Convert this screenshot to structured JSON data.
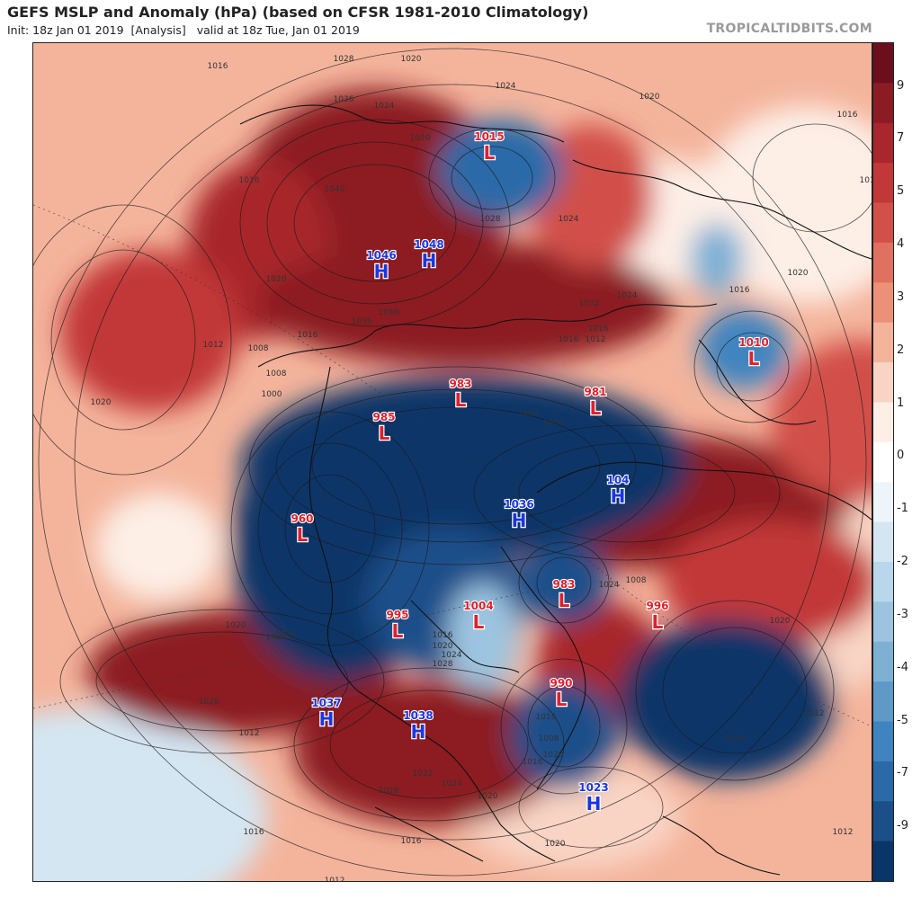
{
  "header": {
    "title": "GEFS MSLP and Anomaly (hPa) (based on CFSR 1981-2010 Climatology)",
    "init": "Init: 18z Jan 01 2019",
    "analysis": "[Analysis]",
    "valid": "valid at 18z Tue, Jan 01 2019",
    "brand": "TROPICALTIDBITS.COM"
  },
  "colors": {
    "strong_positive": "#8c1c24",
    "positive": "#d2504a",
    "weak_positive": "#f4b49c",
    "neutral": "#ffffff",
    "weak_negative": "#b9d7ea",
    "negative": "#3f84c0",
    "strong_negative": "#0a3568",
    "high_label": "#1b36e0",
    "low_label": "#e0202c"
  },
  "colorbar": {
    "ticks": [
      "9",
      "7",
      "5",
      "4",
      "3",
      "2",
      "1",
      "0",
      "-1",
      "-2",
      "-3",
      "-4",
      "-5",
      "-7",
      "-9"
    ],
    "steps": [
      "#6d0e1c",
      "#8c1c24",
      "#a8262c",
      "#c23838",
      "#d2504a",
      "#e07060",
      "#ec9078",
      "#f4b49c",
      "#f9d4c4",
      "#fdeee6",
      "#ffffff",
      "#eef5fa",
      "#d4e6f2",
      "#b9d7ea",
      "#9cc4e0",
      "#7eb0d4",
      "#5e99c8",
      "#3f84c0",
      "#2a6aa8",
      "#1a4f8a",
      "#0a3568"
    ]
  },
  "pressure_centers": [
    {
      "type": "L",
      "value": "1015"
    },
    {
      "type": "H",
      "value": "1046"
    },
    {
      "type": "H",
      "value": "1048"
    },
    {
      "type": "L",
      "value": "983"
    },
    {
      "type": "L",
      "value": "981"
    },
    {
      "type": "L",
      "value": "985"
    },
    {
      "type": "L",
      "value": "1010"
    },
    {
      "type": "H",
      "value": "104"
    },
    {
      "type": "H",
      "value": "1036"
    },
    {
      "type": "L",
      "value": "960"
    },
    {
      "type": "L",
      "value": "983"
    },
    {
      "type": "L",
      "value": "995"
    },
    {
      "type": "L",
      "value": "1004"
    },
    {
      "type": "L",
      "value": "996"
    },
    {
      "type": "L",
      "value": "990"
    },
    {
      "type": "H",
      "value": "1037"
    },
    {
      "type": "H",
      "value": "1038"
    },
    {
      "type": "H",
      "value": "1023"
    }
  ],
  "isobar_labels": [
    "1016",
    "1028",
    "1020",
    "1024",
    "1020",
    "1020",
    "1016",
    "1036",
    "1024",
    "1040",
    "1016",
    "1012",
    "1024",
    "1028",
    "1032",
    "1024",
    "1016",
    "1020",
    "1012",
    "1008",
    "1020",
    "1016",
    "1036",
    "1040",
    "1020",
    "1016",
    "1012",
    "1016",
    "1008",
    "1000",
    "1004",
    "1004",
    "1024",
    "1028",
    "1016",
    "1020",
    "1024",
    "1032",
    "1028",
    "1024",
    "1016",
    "1020",
    "1008",
    "1024",
    "1020",
    "1012",
    "1016",
    "1028",
    "1024",
    "1016",
    "1012",
    "1020",
    "1020",
    "1016",
    "1008",
    "1016",
    "1012",
    "1020",
    "1016",
    "1012"
  ]
}
